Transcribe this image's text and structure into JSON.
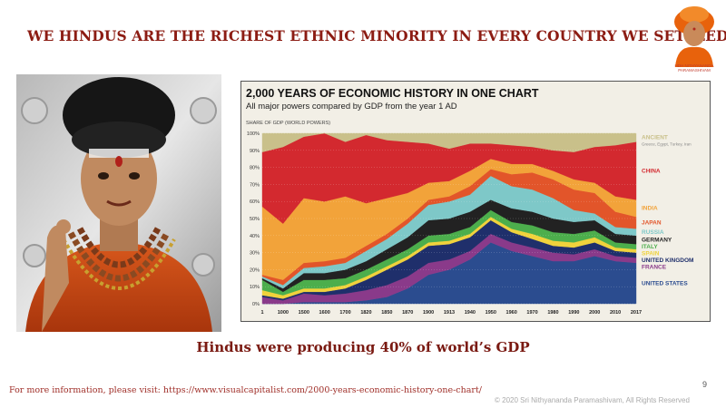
{
  "slide": {
    "title": "WE HINDUS ARE THE RICHEST ETHNIC MINORITY IN EVERY COUNTRY WE SETTLED",
    "logo_caption": "HDH NITHYANANDA PARAMASHIVAM",
    "subtitle": "Hindus were producing 40% of world’s GDP",
    "footer": "For more information, please visit: https://www.visualcapitalist.com/2000-years-economic-history-one-chart/",
    "page_number": "9",
    "copyright": "© 2020 Sri Nithyananda Paramashivam, All Rights Reserved"
  },
  "colors": {
    "title": "#8c1c13",
    "subtitle": "#7a1a12",
    "chart_bg": "#f2efe6"
  },
  "chart_data": {
    "type": "area",
    "stacked": true,
    "title": "2,000 YEARS OF ECONOMIC HISTORY IN ONE CHART",
    "subtitle": "All major powers compared by GDP from the year 1 AD",
    "ylabel": "SHARE OF GDP (WORLD POWERS)",
    "ylim": [
      0,
      100
    ],
    "y_ticks": [
      "0%",
      "10%",
      "20%",
      "30%",
      "40%",
      "50%",
      "60%",
      "70%",
      "80%",
      "90%",
      "100%"
    ],
    "categories": [
      "1",
      "1000",
      "1500",
      "1600",
      "1700",
      "1820",
      "1850",
      "1870",
      "1900",
      "1913",
      "1940",
      "1950",
      "1960",
      "1970",
      "1980",
      "1990",
      "2000",
      "2010",
      "2017"
    ],
    "series": [
      {
        "name": "UNITED STATES",
        "color": "#2b4c8f",
        "values": [
          0,
          0,
          1,
          1,
          1,
          2,
          4,
          9,
          17,
          20,
          26,
          36,
          31,
          28,
          25,
          25,
          28,
          25,
          24
        ]
      },
      {
        "name": "FRANCE",
        "color": "#8a3a8a",
        "values": [
          4,
          2,
          5,
          4,
          5,
          6,
          7,
          7,
          7,
          6,
          5,
          5,
          5,
          5,
          5,
          4,
          4,
          3,
          3
        ]
      },
      {
        "name": "UNITED KINGDOM",
        "color": "#1f2f6b",
        "values": [
          1,
          1,
          1,
          2,
          3,
          6,
          9,
          10,
          10,
          9,
          8,
          8,
          6,
          5,
          4,
          4,
          4,
          3,
          3
        ]
      },
      {
        "name": "SPAIN",
        "color": "#f0d23c",
        "values": [
          3,
          2,
          2,
          2,
          2,
          2,
          2,
          2,
          2,
          2,
          2,
          2,
          2,
          3,
          3,
          3,
          3,
          2,
          2
        ]
      },
      {
        "name": "ITALY",
        "color": "#4cae4c",
        "values": [
          6,
          2,
          5,
          5,
          4,
          4,
          4,
          4,
          4,
          4,
          4,
          4,
          4,
          5,
          5,
          5,
          4,
          3,
          3
        ]
      },
      {
        "name": "GERMANY",
        "color": "#222222",
        "values": [
          1,
          2,
          4,
          4,
          5,
          5,
          6,
          7,
          9,
          9,
          9,
          6,
          8,
          8,
          8,
          7,
          6,
          5,
          5
        ]
      },
      {
        "name": "RUSSIA",
        "color": "#7ec8c8",
        "values": [
          1,
          2,
          3,
          4,
          4,
          6,
          6,
          8,
          9,
          10,
          10,
          14,
          13,
          13,
          12,
          7,
          4,
          4,
          4
        ]
      },
      {
        "name": "JAPAN",
        "color": "#e2552a",
        "values": [
          1,
          3,
          3,
          3,
          3,
          3,
          3,
          3,
          3,
          3,
          5,
          4,
          7,
          10,
          11,
          12,
          12,
          9,
          7
        ]
      },
      {
        "name": "INDIA",
        "color": "#f2a33a",
        "values": [
          40,
          33,
          38,
          35,
          36,
          25,
          21,
          15,
          10,
          9,
          9,
          6,
          6,
          5,
          5,
          6,
          6,
          9,
          10
        ]
      },
      {
        "name": "CHINA",
        "color": "#d3292f",
        "values": [
          32,
          45,
          36,
          40,
          32,
          40,
          34,
          30,
          23,
          19,
          16,
          9,
          11,
          10,
          12,
          16,
          21,
          30,
          34
        ]
      },
      {
        "name": "ANCIENT",
        "sublabel": "Greece, Egypt, Turkey, Iran",
        "color": "#c9c08a",
        "values": [
          11,
          8,
          2,
          0,
          5,
          1,
          4,
          5,
          6,
          9,
          6,
          6,
          7,
          8,
          10,
          11,
          8,
          7,
          5
        ]
      }
    ],
    "legend": "right"
  }
}
